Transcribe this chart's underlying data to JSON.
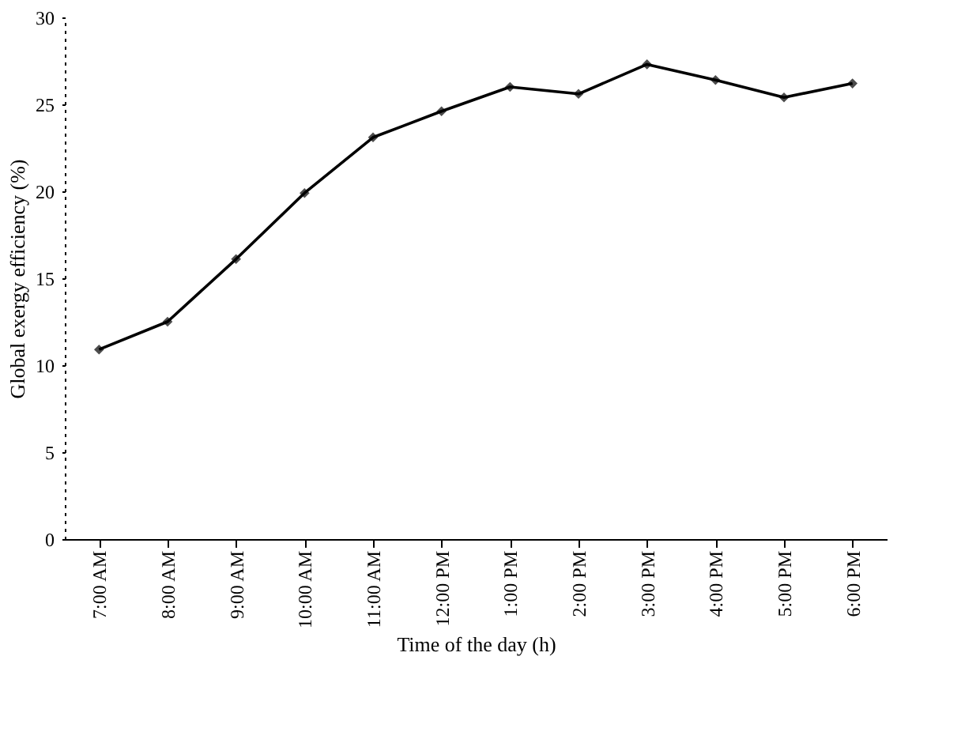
{
  "chart_data": {
    "type": "line",
    "xlabel": "Time of the day (h)",
    "ylabel": "Global exergy efficiency (%)",
    "categories": [
      "7:00 AM",
      "8:00 AM",
      "9:00 AM",
      "10:00 AM",
      "11:00 AM",
      "12:00 PM",
      "1:00 PM",
      "2:00 PM",
      "3:00 PM",
      "4:00 PM",
      "5:00 PM",
      "6:00 PM"
    ],
    "series": [
      {
        "color": "#000000",
        "values": [
          10.9,
          12.5,
          16.1,
          19.9,
          23.1,
          24.6,
          26.0,
          25.6,
          27.3,
          26.4,
          25.4,
          26.2
        ]
      }
    ],
    "ylim": [
      0,
      30
    ],
    "yticks": [
      0,
      5,
      10,
      15,
      20,
      25,
      30
    ],
    "marker": "diamond",
    "grid": false,
    "legend": false
  }
}
